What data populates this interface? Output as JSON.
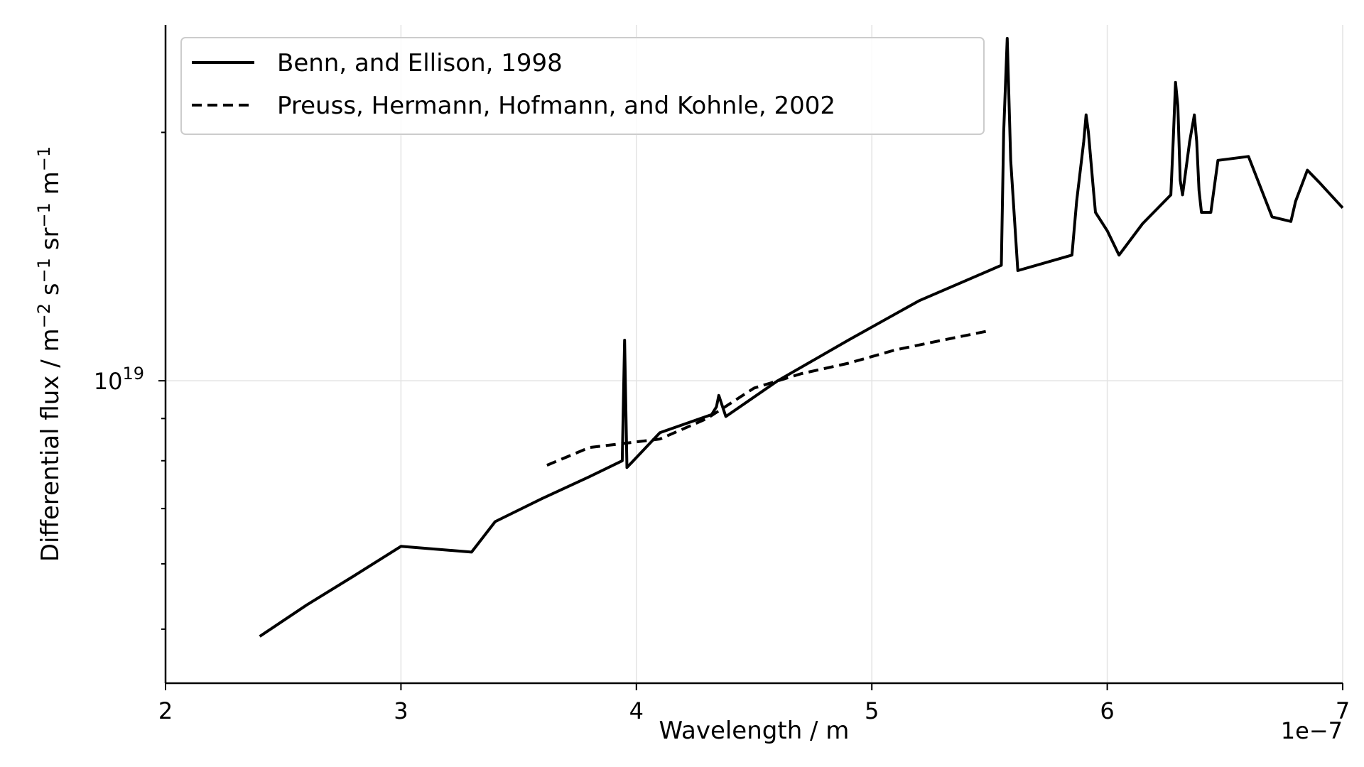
{
  "chart_data": {
    "type": "line",
    "xlabel": "Wavelength / m",
    "ylabel": "Differential flux / m",
    "ylabel_parts": [
      {
        "t": "Differential flux / m",
        "sup": false
      },
      {
        "t": "−2",
        "sup": true
      },
      {
        "t": " s",
        "sup": false
      },
      {
        "t": "−1",
        "sup": true
      },
      {
        "t": " sr",
        "sup": false
      },
      {
        "t": "−1",
        "sup": true
      },
      {
        "t": " m",
        "sup": false
      },
      {
        "t": "−1",
        "sup": true
      }
    ],
    "x_offset_label": "1e−7",
    "xlim": [
      2e-07,
      7e-07
    ],
    "ylim": [
      4.3e+18,
      2.7e+19
    ],
    "yscale": "log",
    "grid": true,
    "legend_position": "top-left",
    "x_ticks": [
      {
        "value": 2e-07,
        "label": "2"
      },
      {
        "value": 3e-07,
        "label": "3"
      },
      {
        "value": 4e-07,
        "label": "4"
      },
      {
        "value": 5e-07,
        "label": "5"
      },
      {
        "value": 6e-07,
        "label": "6"
      },
      {
        "value": 7e-07,
        "label": "7"
      }
    ],
    "y_major_tick": {
      "value": 1e+19,
      "base": "10",
      "exp": "19"
    },
    "y_minor_ticks": [
      5e+18,
      6e+18,
      7e+18,
      8e+18,
      9e+18,
      2e+19
    ],
    "series": [
      {
        "name": "Benn, and Ellison, 1998",
        "style": "solid",
        "color": "#000000",
        "x": [
          2.4e-07,
          2.6e-07,
          2.8e-07,
          3e-07,
          3.3e-07,
          3.4e-07,
          3.6e-07,
          3.8e-07,
          3.94e-07,
          3.95e-07,
          3.96e-07,
          4.1e-07,
          4.32e-07,
          4.34e-07,
          4.35e-07,
          4.38e-07,
          4.6e-07,
          4.9e-07,
          5.2e-07,
          5.55e-07,
          5.56e-07,
          5.575e-07,
          5.59e-07,
          5.62e-07,
          5.85e-07,
          5.87e-07,
          5.9e-07,
          5.91e-07,
          5.92e-07,
          5.94e-07,
          5.95e-07,
          6e-07,
          6.05e-07,
          6.15e-07,
          6.27e-07,
          6.28e-07,
          6.29e-07,
          6.3e-07,
          6.31e-07,
          6.32e-07,
          6.35e-07,
          6.37e-07,
          6.38e-07,
          6.39e-07,
          6.4e-07,
          6.44e-07,
          6.47e-07,
          6.6e-07,
          6.7e-07,
          6.78e-07,
          6.8e-07,
          6.85e-07,
          6.9e-07,
          7e-07
        ],
        "y": [
          4.9e+18,
          5.35e+18,
          5.8e+18,
          6.3e+18,
          6.2e+18,
          6.75e+18,
          7.2e+18,
          7.65e+18,
          8e+18,
          1.12e+19,
          7.85e+18,
          8.65e+18,
          9.1e+18,
          9.3e+18,
          9.6e+18,
          9.05e+18,
          1e+19,
          1.12e+19,
          1.25e+19,
          1.38e+19,
          2e+19,
          2.6e+19,
          1.85e+19,
          1.36e+19,
          1.42e+19,
          1.65e+19,
          1.95e+19,
          2.1e+19,
          2e+19,
          1.72e+19,
          1.6e+19,
          1.52e+19,
          1.42e+19,
          1.55e+19,
          1.68e+19,
          1.95e+19,
          2.3e+19,
          2.15e+19,
          1.75e+19,
          1.68e+19,
          1.95e+19,
          2.1e+19,
          1.95e+19,
          1.7e+19,
          1.6e+19,
          1.6e+19,
          1.85e+19,
          1.87e+19,
          1.58e+19,
          1.56e+19,
          1.65e+19,
          1.8e+19,
          1.74e+19,
          1.62e+19
        ]
      },
      {
        "name": "Preuss, Hermann, Hofmann, and Kohnle, 2002",
        "style": "dashed",
        "color": "#000000",
        "x": [
          3.62e-07,
          3.8e-07,
          4.1e-07,
          4.3e-07,
          4.5e-07,
          4.7e-07,
          4.9e-07,
          5.1e-07,
          5.3e-07,
          5.5e-07
        ],
        "y": [
          7.9e+18,
          8.3e+18,
          8.5e+18,
          9e+18,
          9.8e+18,
          1.02e+19,
          1.05e+19,
          1.09e+19,
          1.12e+19,
          1.15e+19
        ]
      }
    ]
  }
}
